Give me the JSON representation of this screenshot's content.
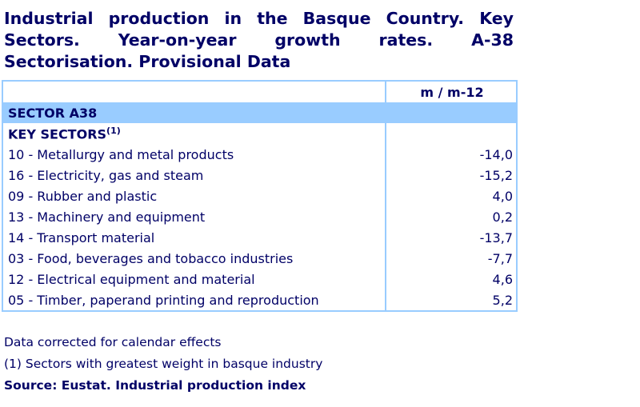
{
  "title": "Industrial production in the Basque Country. Key Sectors. Year-on-year growth rates. A-38 Sectorisation. Provisional Data",
  "table": {
    "column_header": "m / m-12",
    "section": "SECTOR A38",
    "group_label": "KEY SECTORS",
    "group_sup": "(1)",
    "rows": [
      {
        "label": "10 - Metallurgy and metal products",
        "value": "-14,0"
      },
      {
        "label": "16 - Electricity, gas and steam",
        "value": "-15,2"
      },
      {
        "label": "09 - Rubber and plastic",
        "value": "4,0"
      },
      {
        "label": "13 - Machinery and equipment",
        "value": "0,2"
      },
      {
        "label": "14 - Transport material",
        "value": "-13,7"
      },
      {
        "label": "03 - Food, beverages and tobacco industries",
        "value": "-7,7"
      },
      {
        "label": "12 - Electrical equipment and material",
        "value": "4,6"
      },
      {
        "label": "05 - Timber, paperand printing and reproduction",
        "value": "5,2"
      }
    ]
  },
  "notes": {
    "calendar": "Data corrected for calendar effects",
    "footnote": "(1) Sectors with greatest weight in basque industry",
    "source": "Source: Eustat. Industrial production index"
  },
  "colors": {
    "text": "#000066",
    "header_bg": "#99ccff",
    "border": "#99ccff"
  }
}
